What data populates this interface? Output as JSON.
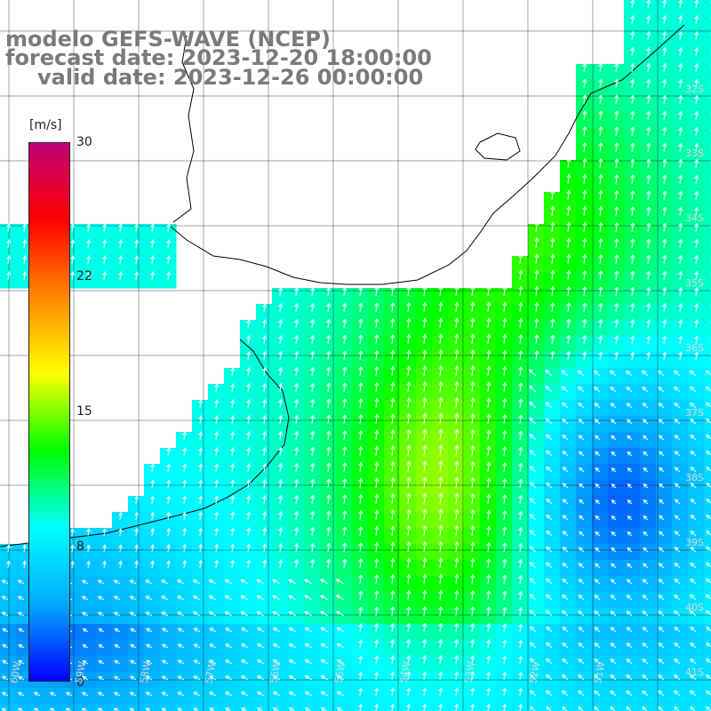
{
  "title": {
    "line1": "modelo GEFS-WAVE (NCEP)",
    "line2": "forecast date: 2023-12-20 18:00:00",
    "line3": "valid date: 2023-12-26 00:00:00"
  },
  "colorbar": {
    "unit": "[m/s]",
    "ticks": [
      "30",
      "22",
      "15",
      "8",
      "0"
    ],
    "tick_values": [
      30,
      22,
      15,
      8,
      0
    ],
    "range": [
      0,
      30
    ],
    "colors": [
      "#0000ff",
      "#00aaff",
      "#00ffff",
      "#00ff00",
      "#ffff00",
      "#ff8800",
      "#ff0000",
      "#c0007a"
    ]
  },
  "map": {
    "variable": "wind speed",
    "lat_labels": [
      "32S",
      "33S",
      "34S",
      "35S",
      "36S",
      "37S",
      "38S",
      "39S",
      "40S",
      "41S"
    ],
    "lon_labels": [
      "60W",
      "59W",
      "58W",
      "57W",
      "56W",
      "55W",
      "54W",
      "53W",
      "52W",
      "51W"
    ],
    "colors": {
      "land": "#ffffff",
      "coast": "#000000",
      "grid": "#000000",
      "arrows": "#ffffff"
    }
  }
}
